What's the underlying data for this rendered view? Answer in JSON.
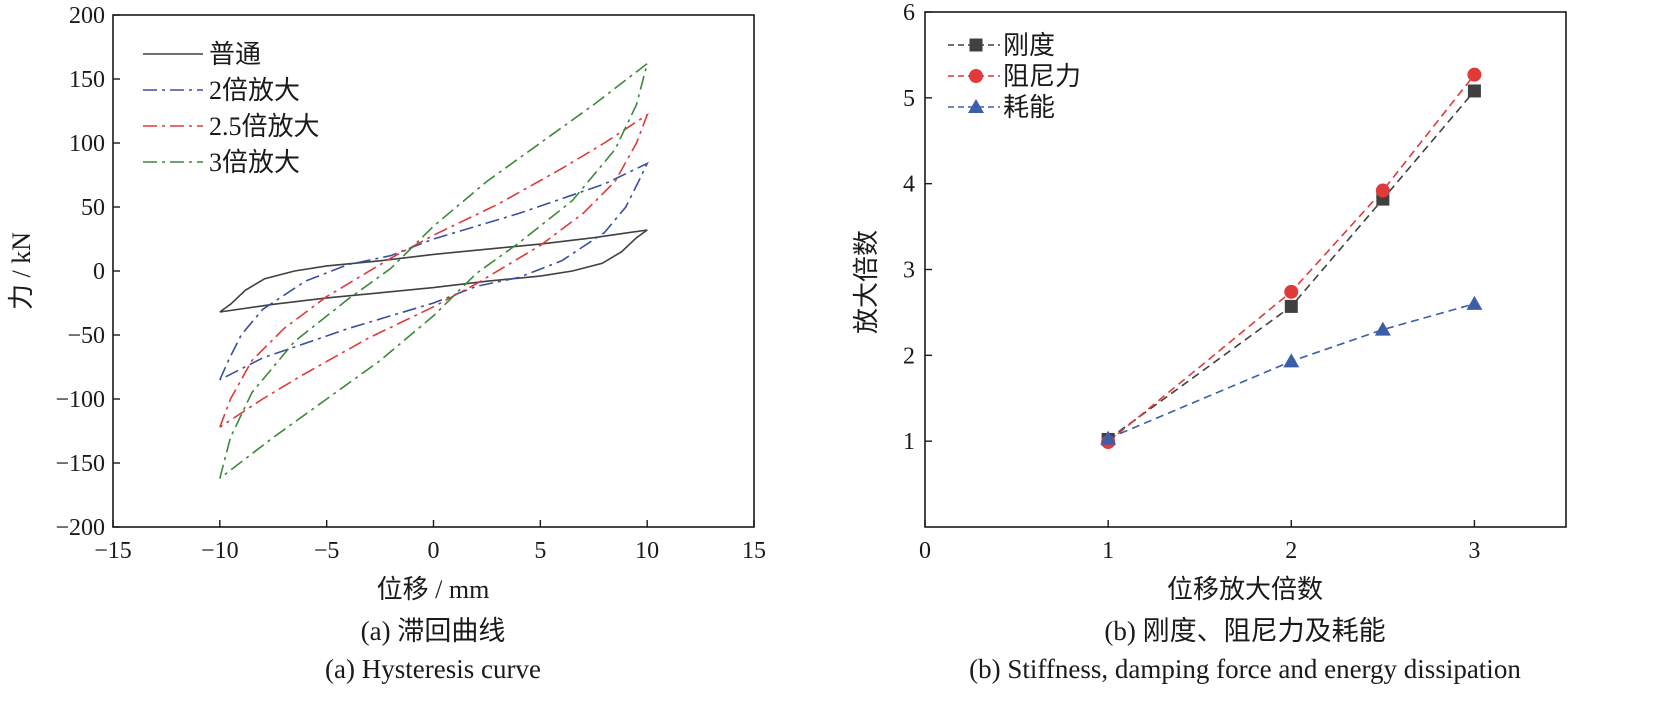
{
  "chart_data": [
    {
      "type": "line",
      "panel": "a",
      "xlabel": "位移 / mm",
      "ylabel": "力 / kN",
      "xlim": [
        -15,
        15
      ],
      "ylim": [
        -200,
        200
      ],
      "xticks": [
        -15,
        -10,
        -5,
        0,
        5,
        10,
        15
      ],
      "yticks": [
        -200,
        -150,
        -100,
        -50,
        0,
        50,
        100,
        150,
        200
      ],
      "xtick_labels": [
        "−15",
        "−10",
        "−5",
        "0",
        "5",
        "10",
        "15"
      ],
      "ytick_labels": [
        "−200",
        "−150",
        "−100",
        "−50",
        "0",
        "50",
        "100",
        "150",
        "200"
      ],
      "caption_cn": "(a) 滞回曲线",
      "caption_en": "(a) Hysteresis curve",
      "legend_position": "top-left",
      "series": [
        {
          "name": "普通",
          "color": "#404040",
          "dash": "solid",
          "loop_upper": [
            [
              -10,
              -32
            ],
            [
              -9.5,
              -26
            ],
            [
              -8.8,
              -15
            ],
            [
              -7.9,
              -6
            ],
            [
              -6.5,
              0
            ],
            [
              -5,
              4
            ],
            [
              -2.5,
              8
            ],
            [
              0,
              13
            ],
            [
              2.5,
              17
            ],
            [
              5,
              21
            ],
            [
              7.5,
              26
            ],
            [
              10,
              32
            ]
          ],
          "loop_lower": [
            [
              10,
              32
            ],
            [
              9.5,
              26
            ],
            [
              8.8,
              15
            ],
            [
              7.9,
              6
            ],
            [
              6.5,
              0
            ],
            [
              5,
              -4
            ],
            [
              2.5,
              -8
            ],
            [
              0,
              -13
            ],
            [
              -2.5,
              -17
            ],
            [
              -5,
              -21
            ],
            [
              -7.5,
              -26
            ],
            [
              -10,
              -32
            ]
          ]
        },
        {
          "name": "2倍放大",
          "color": "#3a4fa0",
          "dash": "dashdot",
          "loop_upper": [
            [
              -10,
              -85
            ],
            [
              -9.6,
              -70
            ],
            [
              -9,
              -50
            ],
            [
              -8,
              -30
            ],
            [
              -6,
              -8
            ],
            [
              -4,
              5
            ],
            [
              -2,
              12
            ],
            [
              0,
              25
            ],
            [
              4,
              45
            ],
            [
              8,
              68
            ],
            [
              10,
              84
            ]
          ],
          "loop_lower": [
            [
              10,
              84
            ],
            [
              9.6,
              70
            ],
            [
              9,
              50
            ],
            [
              8,
              30
            ],
            [
              6,
              8
            ],
            [
              4,
              -5
            ],
            [
              2,
              -12
            ],
            [
              0,
              -25
            ],
            [
              -4,
              -45
            ],
            [
              -8,
              -68
            ],
            [
              -10,
              -85
            ]
          ]
        },
        {
          "name": "2.5倍放大",
          "color": "#e03a3a",
          "dash": "dashdot",
          "loop_upper": [
            [
              -10,
              -122
            ],
            [
              -9.5,
              -100
            ],
            [
              -8.5,
              -70
            ],
            [
              -7,
              -45
            ],
            [
              -5,
              -20
            ],
            [
              -2,
              10
            ],
            [
              0,
              28
            ],
            [
              3,
              52
            ],
            [
              6,
              80
            ],
            [
              8,
              100
            ],
            [
              10,
              122
            ]
          ],
          "loop_lower": [
            [
              10,
              122
            ],
            [
              9.5,
              100
            ],
            [
              8.5,
              70
            ],
            [
              7,
              45
            ],
            [
              5,
              20
            ],
            [
              2,
              -10
            ],
            [
              0,
              -28
            ],
            [
              -3,
              -52
            ],
            [
              -6,
              -80
            ],
            [
              -8,
              -100
            ],
            [
              -10,
              -122
            ]
          ]
        },
        {
          "name": "3倍放大",
          "color": "#3a8a3a",
          "dash": "dashdot",
          "loop_upper": [
            [
              -10,
              -162
            ],
            [
              -9.5,
              -130
            ],
            [
              -8.5,
              -95
            ],
            [
              -6.5,
              -55
            ],
            [
              -4,
              -22
            ],
            [
              -2,
              2
            ],
            [
              0,
              35
            ],
            [
              2.5,
              70
            ],
            [
              5,
              100
            ],
            [
              7.5,
              130
            ],
            [
              10,
              162
            ]
          ],
          "loop_lower": [
            [
              10,
              162
            ],
            [
              9.5,
              130
            ],
            [
              8.5,
              95
            ],
            [
              6.5,
              55
            ],
            [
              4,
              22
            ],
            [
              2,
              -2
            ],
            [
              0,
              -35
            ],
            [
              -2.5,
              -70
            ],
            [
              -5,
              -100
            ],
            [
              -7.5,
              -130
            ],
            [
              -10,
              -162
            ]
          ]
        }
      ]
    },
    {
      "type": "line",
      "panel": "b",
      "xlabel": "位移放大倍数",
      "ylabel": "放大倍数",
      "xlim": [
        0,
        3.5
      ],
      "ylim": [
        0,
        6
      ],
      "xticks": [
        0,
        1,
        2,
        3
      ],
      "yticks": [
        1,
        2,
        3,
        4,
        5,
        6
      ],
      "caption_cn": "(b) 刚度、阻尼力及耗能",
      "caption_en": "(b) Stiffness, damping force and energy dissipation",
      "legend_position": "top-left",
      "x": [
        1,
        2,
        2.5,
        3
      ],
      "series": [
        {
          "name": "刚度",
          "color": "#404040",
          "marker": "square",
          "values": [
            1.02,
            2.57,
            3.82,
            5.08
          ]
        },
        {
          "name": "阻尼力",
          "color": "#e03a3a",
          "marker": "circle",
          "values": [
            0.99,
            2.74,
            3.92,
            5.27
          ]
        },
        {
          "name": "耗能",
          "color": "#3a5fa8",
          "marker": "triangle",
          "values": [
            1.03,
            1.93,
            2.3,
            2.6
          ]
        }
      ]
    }
  ]
}
